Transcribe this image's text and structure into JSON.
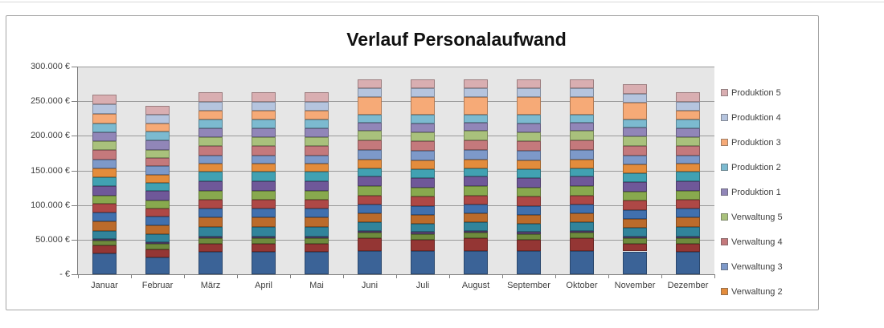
{
  "sheet": {
    "background": "#FFFFFF",
    "gridline_color": "#D9D9D9"
  },
  "chart": {
    "title": "Verlauf Personalaufwand",
    "frame": {
      "border_color": "#A6A6A6",
      "background": "#FFFFFF"
    },
    "plot": {
      "background": "#E6E6E6",
      "gridline_color": "#999999",
      "axis_color": "#7F7F7F"
    },
    "text_color": "#404040",
    "y_axis": {
      "tick_labels": [
        "300.000 €",
        "250.000 €",
        "200.000 €",
        "150.000 €",
        "100.000 €",
        "50.000 €",
        "- €"
      ]
    },
    "x_axis": {
      "tick_labels": [
        "Januar",
        "Februar",
        "März",
        "April",
        "Mai",
        "Juni",
        "Juli",
        "August",
        "September",
        "Oktober",
        "November",
        "Dezember"
      ]
    },
    "legend": {
      "position": "right",
      "items": [
        {
          "label": "Produktion 5",
          "color": "#D9AEB1"
        },
        {
          "label": "Produktion 4",
          "color": "#B5C4DE"
        },
        {
          "label": "Produktion 3",
          "color": "#F6AA77"
        },
        {
          "label": "Produktion 2",
          "color": "#7CBAD0"
        },
        {
          "label": "Produktion 1",
          "color": "#9186B8"
        },
        {
          "label": "Verwaltung 5",
          "color": "#A9C17C"
        },
        {
          "label": "Verwaltung 4",
          "color": "#C4797C"
        },
        {
          "label": "Verwaltung 3",
          "color": "#7D99C9"
        },
        {
          "label": "Verwaltung 2",
          "color": "#E38C3C"
        }
      ]
    }
  },
  "chart_data": {
    "type": "bar",
    "stacked": true,
    "title": "Verlauf Personalaufwand",
    "categories": [
      "Januar",
      "Februar",
      "März",
      "April",
      "Mai",
      "Juni",
      "Juli",
      "August",
      "September",
      "Oktober",
      "November",
      "Dezember"
    ],
    "xlabel": "",
    "ylabel": "",
    "ylim": [
      0,
      300000
    ],
    "y_tick_step": 50000,
    "y_tick_labels": [
      "300.000 €",
      "250.000 €",
      "200.000 €",
      "150.000 €",
      "100.000 €",
      "50.000 €",
      "- €"
    ],
    "grid": true,
    "legend_position": "right",
    "series_order": "bottom-to-top",
    "series": [
      {
        "name": null,
        "color": "#3B6397",
        "values": [
          30000,
          24000,
          32000,
          32000,
          32000,
          34000,
          34000,
          34000,
          34000,
          34000,
          33000,
          32000
        ]
      },
      {
        "name": null,
        "color": "#943634",
        "values": [
          12000,
          12000,
          12000,
          12000,
          12000,
          18000,
          16000,
          18000,
          16000,
          18000,
          11000,
          12000
        ]
      },
      {
        "name": null,
        "color": "#6E8B3D",
        "values": [
          7000,
          8000,
          8000,
          8000,
          8000,
          8000,
          8000,
          8000,
          8000,
          8000,
          8000,
          8000
        ]
      },
      {
        "name": null,
        "color": "#5F497A",
        "values": [
          2000,
          2000,
          3000,
          3000,
          3000,
          3000,
          3000,
          3000,
          3000,
          3000,
          3000,
          3000
        ]
      },
      {
        "name": null,
        "color": "#31849B",
        "values": [
          12000,
          12000,
          13000,
          13000,
          13000,
          12000,
          12000,
          12000,
          12000,
          12000,
          12000,
          13000
        ]
      },
      {
        "name": null,
        "color": "#BB6B2B",
        "values": [
          13000,
          13000,
          14000,
          14000,
          14000,
          13000,
          13000,
          13000,
          13000,
          13000,
          13000,
          14000
        ]
      },
      {
        "name": null,
        "color": "#4170AE",
        "values": [
          13000,
          12000,
          13000,
          13000,
          13000,
          13000,
          13000,
          13000,
          13000,
          13000,
          13000,
          13000
        ]
      },
      {
        "name": null,
        "color": "#AE4846",
        "values": [
          13000,
          12000,
          13000,
          13000,
          13000,
          12000,
          13000,
          12000,
          13000,
          12000,
          13000,
          13000
        ]
      },
      {
        "name": null,
        "color": "#88A94E",
        "values": [
          12000,
          12000,
          12000,
          12000,
          12000,
          14000,
          13000,
          14000,
          13000,
          14000,
          13000,
          12000
        ]
      },
      {
        "name": null,
        "color": "#6F5899",
        "values": [
          13000,
          13000,
          14000,
          14000,
          14000,
          14000,
          14000,
          14000,
          14000,
          14000,
          14000,
          14000
        ]
      },
      {
        "name": null,
        "color": "#41A1B2",
        "values": [
          13000,
          12000,
          14000,
          14000,
          14000,
          12000,
          13000,
          12000,
          13000,
          12000,
          13000,
          14000
        ]
      },
      {
        "name": "Verwaltung 2",
        "color": "#E38C3C",
        "values": [
          13000,
          12000,
          12000,
          12000,
          12000,
          13000,
          13000,
          13000,
          13000,
          13000,
          13000,
          12000
        ]
      },
      {
        "name": "Verwaltung 3",
        "color": "#7D99C9",
        "values": [
          13000,
          12000,
          12000,
          12000,
          12000,
          14000,
          13000,
          14000,
          13000,
          14000,
          13000,
          12000
        ]
      },
      {
        "name": "Verwaltung 4",
        "color": "#C4797C",
        "values": [
          13000,
          12000,
          13000,
          13000,
          13000,
          13000,
          14000,
          13000,
          14000,
          13000,
          13000,
          13000
        ]
      },
      {
        "name": "Verwaltung 5",
        "color": "#A9C17C",
        "values": [
          13000,
          12000,
          13000,
          13000,
          13000,
          14000,
          13000,
          14000,
          13000,
          14000,
          14000,
          13000
        ]
      },
      {
        "name": "Produktion 1",
        "color": "#9186B8",
        "values": [
          13000,
          13000,
          13000,
          13000,
          13000,
          12000,
          13000,
          12000,
          13000,
          12000,
          13000,
          13000
        ]
      },
      {
        "name": "Produktion 2",
        "color": "#7CBAD0",
        "values": [
          13000,
          13000,
          12000,
          12000,
          12000,
          12000,
          12000,
          12000,
          12000,
          12000,
          12000,
          12000
        ]
      },
      {
        "name": "Produktion 3",
        "color": "#F6AA77",
        "values": [
          14000,
          12000,
          13000,
          13000,
          13000,
          25000,
          26000,
          25000,
          26000,
          25000,
          24000,
          13000
        ]
      },
      {
        "name": "Produktion 4",
        "color": "#B5C4DE",
        "values": [
          13000,
          13000,
          13000,
          13000,
          13000,
          13000,
          13000,
          13000,
          13000,
          13000,
          13000,
          13000
        ]
      },
      {
        "name": "Produktion 5",
        "color": "#D9AEB1",
        "values": [
          14000,
          12000,
          14000,
          14000,
          14000,
          13000,
          13000,
          13000,
          13000,
          13000,
          13000,
          14000
        ]
      }
    ],
    "totals": [
      259000,
      243000,
      263000,
      263000,
      263000,
      282000,
      282000,
      282000,
      282000,
      282000,
      274000,
      263000
    ]
  }
}
